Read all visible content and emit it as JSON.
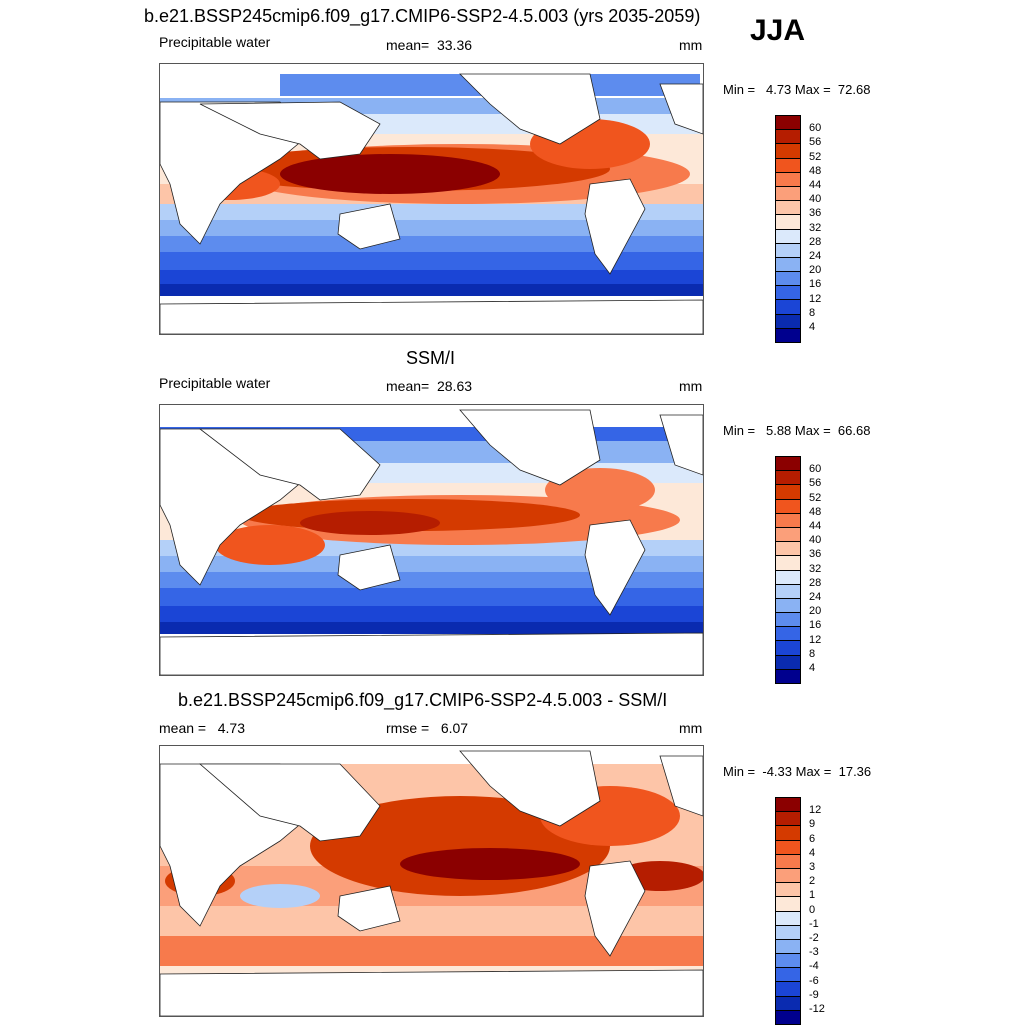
{
  "season": "JJA",
  "panels": [
    {
      "title": "b.e21.BSSP245cmip6.f09_g17.CMIP6-SSP2-4.5.003 (yrs 2035-2059)",
      "left_label": "Precipitable water",
      "center_label": "mean=  33.36",
      "units": "mm",
      "minmax": "Min =   4.73 Max =  72.68",
      "colorbar_ticks": [
        "60",
        "56",
        "52",
        "48",
        "44",
        "40",
        "36",
        "32",
        "28",
        "24",
        "20",
        "16",
        "12",
        "8",
        "4"
      ],
      "mean": 33.36,
      "min": 4.73,
      "max": 72.68
    },
    {
      "title": "SSM/I",
      "left_label": "Precipitable water",
      "center_label": "mean=  28.63",
      "units": "mm",
      "minmax": "Min =   5.88 Max =  66.68",
      "colorbar_ticks": [
        "60",
        "56",
        "52",
        "48",
        "44",
        "40",
        "36",
        "32",
        "28",
        "24",
        "20",
        "16",
        "12",
        "8",
        "4"
      ],
      "mean": 28.63,
      "min": 5.88,
      "max": 66.68
    },
    {
      "title": "b.e21.BSSP245cmip6.f09_g17.CMIP6-SSP2-4.5.003 - SSM/I",
      "left_label": "mean =   4.73",
      "center_label": "rmse =   6.07",
      "units": "mm",
      "minmax": "Min =  -4.33 Max =  17.36",
      "colorbar_ticks": [
        "12",
        "9",
        "6",
        "4",
        "3",
        "2",
        "1",
        "0",
        "-1",
        "-2",
        "-3",
        "-4",
        "-6",
        "-9",
        "-12"
      ],
      "mean": 4.73,
      "rmse": 6.07,
      "min": -4.33,
      "max": 17.36
    }
  ],
  "colors": {
    "scale": [
      "#8b0000",
      "#b51d00",
      "#d43a00",
      "#f0551e",
      "#f77a4c",
      "#fb9f7a",
      "#fdc5a8",
      "#fde8d8",
      "#dbe9fb",
      "#b4d0f8",
      "#8ab2f3",
      "#5d8cee",
      "#3565e6",
      "#1b45d6",
      "#0a2bb0",
      "#00008e"
    ]
  }
}
